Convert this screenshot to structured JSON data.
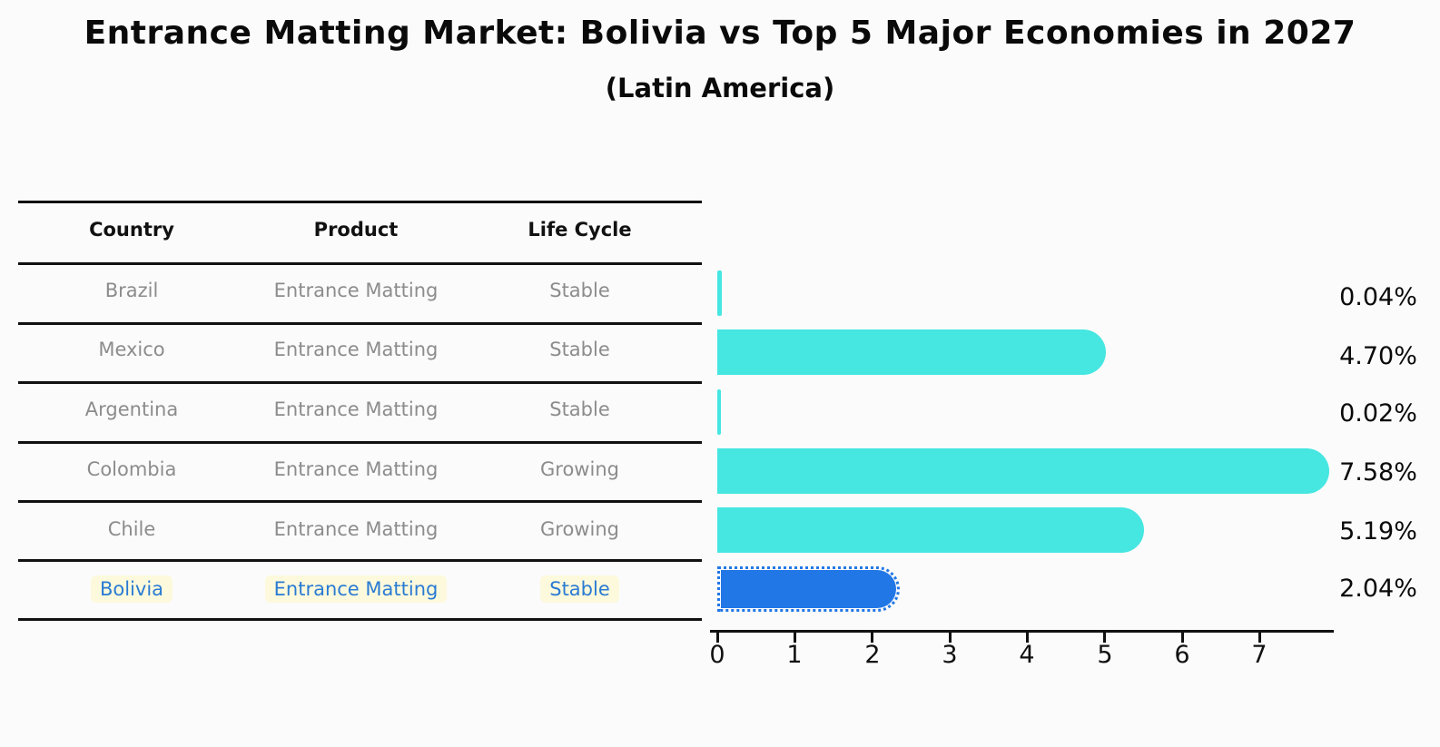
{
  "title": "Entrance Matting Market: Bolivia vs Top 5 Major Economies in 2027",
  "subtitle": "(Latin America)",
  "table": {
    "headers": [
      "Country",
      "Product",
      "Life Cycle"
    ],
    "rows": [
      {
        "country": "Brazil",
        "product": "Entrance Matting",
        "life_cycle": "Stable",
        "highlight": false
      },
      {
        "country": "Mexico",
        "product": "Entrance Matting",
        "life_cycle": "Stable",
        "highlight": false
      },
      {
        "country": "Argentina",
        "product": "Entrance Matting",
        "life_cycle": "Stable",
        "highlight": false
      },
      {
        "country": "Colombia",
        "product": "Entrance Matting",
        "life_cycle": "Growing",
        "highlight": false
      },
      {
        "country": "Chile",
        "product": "Entrance Matting",
        "life_cycle": "Growing",
        "highlight": false
      },
      {
        "country": "Bolivia",
        "product": "Entrance Matting",
        "life_cycle": "Stable",
        "highlight": true
      }
    ]
  },
  "chart_data": {
    "type": "bar",
    "orientation": "horizontal",
    "title": "Entrance Matting Market: Bolivia vs Top 5 Major Economies in 2027",
    "subtitle": "(Latin America)",
    "categories": [
      "Brazil",
      "Mexico",
      "Argentina",
      "Colombia",
      "Chile",
      "Bolivia"
    ],
    "values": [
      0.04,
      4.7,
      0.02,
      7.58,
      5.19,
      2.04
    ],
    "value_labels": [
      "0.04%",
      "4.70%",
      "0.02%",
      "7.58%",
      "5.19%",
      "2.04%"
    ],
    "unit": "percent",
    "xticks": [
      "0",
      "1",
      "2",
      "3",
      "4",
      "5",
      "6",
      "7"
    ],
    "xlim": [
      0,
      7.95
    ],
    "grid": false,
    "highlight_category": "Bolivia",
    "colors": {
      "bar": "#46e6e1",
      "highlight_bar": "#2277e6",
      "highlight_text": "#2a7bd3",
      "highlight_text_background": "#fdf9dc",
      "table_text": "#8c8c8c",
      "header_text": "#111111",
      "axis": "#111111",
      "background": "#fbfbfb"
    }
  }
}
